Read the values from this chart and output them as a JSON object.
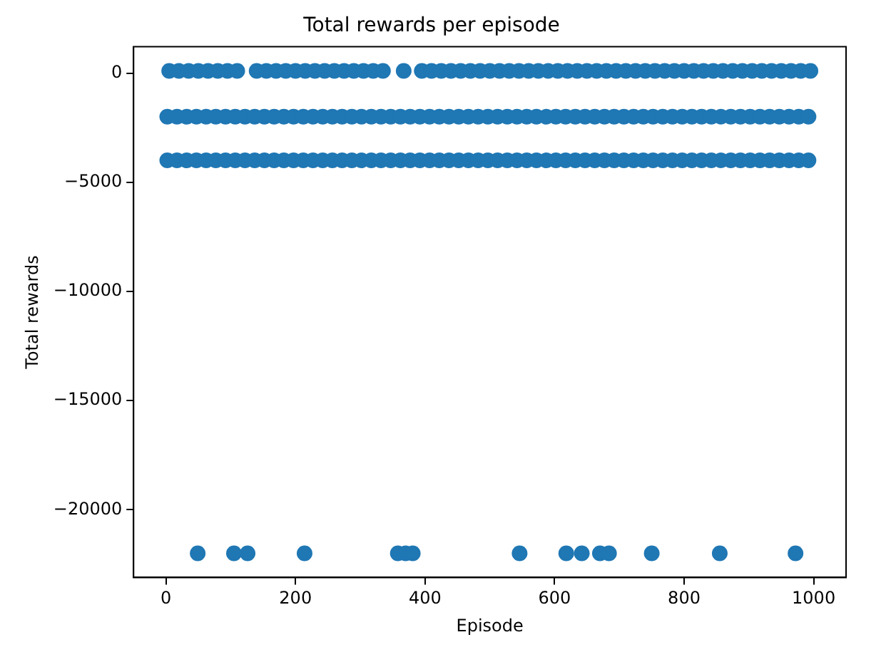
{
  "chart_data": {
    "type": "scatter",
    "title": "Total rewards per episode",
    "xlabel": "Episode",
    "ylabel": "Total rewards",
    "marker": "circle",
    "grid": false,
    "legend": false,
    "xlim": [
      -50,
      1050
    ],
    "ylim": [
      -23105,
      1205
    ],
    "xticks": [
      0,
      200,
      400,
      600,
      800,
      1000
    ],
    "yticks": [
      {
        "value": -20000,
        "label": "−20000"
      },
      {
        "value": -15000,
        "label": "−15000"
      },
      {
        "value": -10000,
        "label": "−10000"
      },
      {
        "value": -5000,
        "label": "−5000"
      },
      0
    ],
    "series": [
      {
        "color": "#1f77b4",
        "x": [
          5,
          20,
          35,
          50,
          65,
          80,
          95,
          110,
          140,
          155,
          170,
          185,
          200,
          215,
          230,
          245,
          260,
          275,
          290,
          305,
          320,
          335,
          367,
          395,
          410,
          425,
          440,
          455,
          470,
          485,
          500,
          515,
          530,
          545,
          560,
          575,
          590,
          605,
          620,
          635,
          650,
          665,
          680,
          695,
          710,
          725,
          740,
          755,
          770,
          785,
          800,
          815,
          830,
          845,
          860,
          875,
          890,
          905,
          920,
          935,
          950,
          965,
          980,
          995
        ],
        "values": [
          100,
          100,
          100,
          100,
          100,
          100,
          100,
          100,
          100,
          100,
          100,
          100,
          100,
          100,
          100,
          100,
          100,
          100,
          100,
          100,
          100,
          100,
          100,
          100,
          100,
          100,
          100,
          100,
          100,
          100,
          100,
          100,
          100,
          100,
          100,
          100,
          100,
          100,
          100,
          100,
          100,
          100,
          100,
          100,
          100,
          100,
          100,
          100,
          100,
          100,
          100,
          100,
          100,
          100,
          100,
          100,
          100,
          100,
          100,
          100,
          100,
          100,
          100,
          100
        ]
      },
      {
        "color": "#1f77b4",
        "x": [
          2,
          17,
          32,
          47,
          62,
          77,
          92,
          107,
          122,
          137,
          152,
          167,
          182,
          197,
          212,
          227,
          242,
          257,
          272,
          287,
          302,
          317,
          332,
          347,
          362,
          377,
          392,
          407,
          422,
          437,
          452,
          467,
          482,
          497,
          512,
          527,
          542,
          557,
          572,
          587,
          602,
          617,
          632,
          647,
          662,
          677,
          692,
          707,
          722,
          737,
          752,
          767,
          782,
          797,
          812,
          827,
          842,
          857,
          872,
          887,
          902,
          917,
          932,
          947,
          962,
          977,
          992
        ],
        "values": [
          -2000,
          -2000,
          -2000,
          -2000,
          -2000,
          -2000,
          -2000,
          -2000,
          -2000,
          -2000,
          -2000,
          -2000,
          -2000,
          -2000,
          -2000,
          -2000,
          -2000,
          -2000,
          -2000,
          -2000,
          -2000,
          -2000,
          -2000,
          -2000,
          -2000,
          -2000,
          -2000,
          -2000,
          -2000,
          -2000,
          -2000,
          -2000,
          -2000,
          -2000,
          -2000,
          -2000,
          -2000,
          -2000,
          -2000,
          -2000,
          -2000,
          -2000,
          -2000,
          -2000,
          -2000,
          -2000,
          -2000,
          -2000,
          -2000,
          -2000,
          -2000,
          -2000,
          -2000,
          -2000,
          -2000,
          -2000,
          -2000,
          -2000,
          -2000,
          -2000,
          -2000,
          -2000,
          -2000,
          -2000,
          -2000,
          -2000,
          -2000
        ]
      },
      {
        "color": "#1f77b4",
        "x": [
          2,
          17,
          32,
          47,
          62,
          77,
          92,
          107,
          122,
          137,
          152,
          167,
          182,
          197,
          212,
          227,
          242,
          257,
          272,
          287,
          302,
          317,
          332,
          347,
          362,
          377,
          392,
          407,
          422,
          437,
          452,
          467,
          482,
          497,
          512,
          527,
          542,
          557,
          572,
          587,
          602,
          617,
          632,
          647,
          662,
          677,
          692,
          707,
          722,
          737,
          752,
          767,
          782,
          797,
          812,
          827,
          842,
          857,
          872,
          887,
          902,
          917,
          932,
          947,
          962,
          977,
          992
        ],
        "values": [
          -4000,
          -4000,
          -4000,
          -4000,
          -4000,
          -4000,
          -4000,
          -4000,
          -4000,
          -4000,
          -4000,
          -4000,
          -4000,
          -4000,
          -4000,
          -4000,
          -4000,
          -4000,
          -4000,
          -4000,
          -4000,
          -4000,
          -4000,
          -4000,
          -4000,
          -4000,
          -4000,
          -4000,
          -4000,
          -4000,
          -4000,
          -4000,
          -4000,
          -4000,
          -4000,
          -4000,
          -4000,
          -4000,
          -4000,
          -4000,
          -4000,
          -4000,
          -4000,
          -4000,
          -4000,
          -4000,
          -4000,
          -4000,
          -4000,
          -4000,
          -4000,
          -4000,
          -4000,
          -4000,
          -4000,
          -4000,
          -4000,
          -4000,
          -4000,
          -4000,
          -4000,
          -4000,
          -4000,
          -4000,
          -4000,
          -4000,
          -4000
        ]
      },
      {
        "color": "#1f77b4",
        "x": [
          49,
          105,
          126,
          214,
          358,
          370,
          381,
          546,
          618,
          642,
          670,
          684,
          750,
          855,
          972
        ],
        "values": [
          -22000,
          -22000,
          -22000,
          -22000,
          -22000,
          -22000,
          -22000,
          -22000,
          -22000,
          -22000,
          -22000,
          -22000,
          -22000,
          -22000,
          -22000
        ]
      }
    ]
  }
}
